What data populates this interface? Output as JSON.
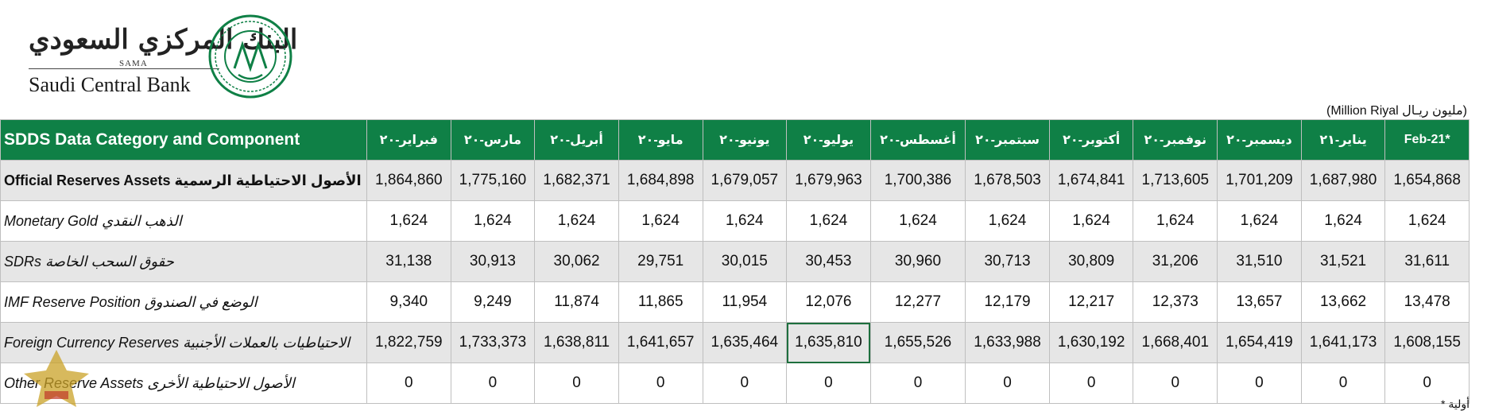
{
  "logo": {
    "arabic": "البنك المركزي السعودي",
    "sama": "SAMA",
    "english": "Saudi Central Bank",
    "brand_color": "#0f8046"
  },
  "unit_label": "(Million Riyal     مليون ريـال)",
  "table": {
    "header_first": "SDDS Data Category and Component",
    "columns": [
      "فبراير-٢٠",
      "مارس-٢٠",
      "أبريل-٢٠",
      "مايو-٢٠",
      "يونيو-٢٠",
      "يوليو-٢٠",
      "أغسطس-٢٠",
      "سبتمبر-٢٠",
      "أكتوبر-٢٠",
      "نوفمبر-٢٠",
      "ديسمبر-٢٠",
      "يناير-٢١",
      "Feb-21*"
    ],
    "rows": [
      {
        "label": "Official Reserves Assets الأصول الاحتياطية الرسمية",
        "values": [
          "1,864,860",
          "1,775,160",
          "1,682,371",
          "1,684,898",
          "1,679,057",
          "1,679,963",
          "1,700,386",
          "1,678,503",
          "1,674,841",
          "1,713,605",
          "1,701,209",
          "1,687,980",
          "1,654,868"
        ]
      },
      {
        "label": "Monetary Gold الذهب النقدي",
        "values": [
          "1,624",
          "1,624",
          "1,624",
          "1,624",
          "1,624",
          "1,624",
          "1,624",
          "1,624",
          "1,624",
          "1,624",
          "1,624",
          "1,624",
          "1,624"
        ]
      },
      {
        "label": "SDRs حقوق السحب الخاصة",
        "values": [
          "31,138",
          "30,913",
          "30,062",
          "29,751",
          "30,015",
          "30,453",
          "30,960",
          "30,713",
          "30,809",
          "31,206",
          "31,510",
          "31,521",
          "31,611"
        ]
      },
      {
        "label": "IMF Reserve Position الوضع في الصندوق",
        "values": [
          "9,340",
          "9,249",
          "11,874",
          "11,865",
          "11,954",
          "12,076",
          "12,277",
          "12,179",
          "12,217",
          "12,373",
          "13,657",
          "13,662",
          "13,478"
        ]
      },
      {
        "label": "Foreign Currency Reserves الاحتياطيات بالعملات الأجنبية",
        "values": [
          "1,822,759",
          "1,733,373",
          "1,638,811",
          "1,641,657",
          "1,635,464",
          "1,635,810",
          "1,655,526",
          "1,633,988",
          "1,630,192",
          "1,668,401",
          "1,654,419",
          "1,641,173",
          "1,608,155"
        ]
      },
      {
        "label": "Other Reserve Assets الأصول الاحتياطية الأخرى",
        "values": [
          "0",
          "0",
          "0",
          "0",
          "0",
          "0",
          "0",
          "0",
          "0",
          "0",
          "0",
          "0",
          "0"
        ]
      }
    ]
  },
  "footnote": "* أولية"
}
